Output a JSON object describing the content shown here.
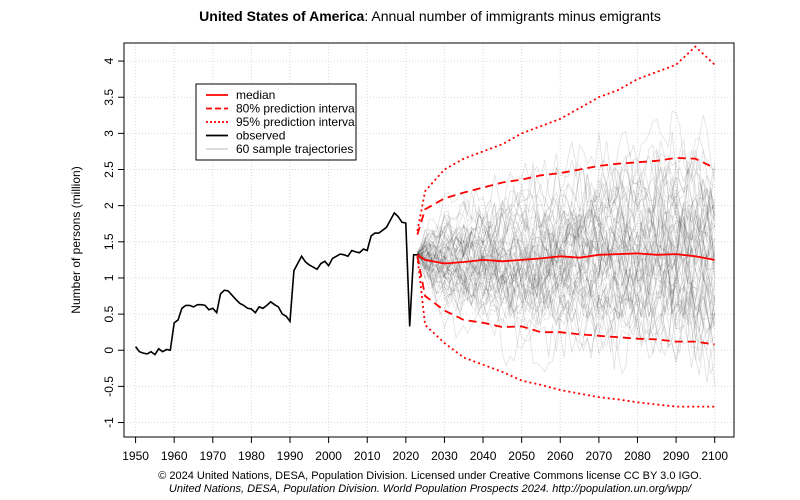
{
  "chart_data": {
    "type": "line",
    "title_bold": "United States of America",
    "title_rest": ": Annual number of immigrants minus emigrants",
    "ylabel": "Number of persons (million)",
    "xlim": [
      1947,
      2105
    ],
    "ylim": [
      -1.2,
      4.25
    ],
    "x_ticks": [
      1950,
      1960,
      1970,
      1980,
      1990,
      2000,
      2010,
      2020,
      2030,
      2040,
      2050,
      2060,
      2070,
      2080,
      2090,
      2100
    ],
    "y_ticks": [
      -1,
      -0.5,
      0,
      0.5,
      1,
      1.5,
      2,
      2.5,
      3,
      3.5,
      4
    ],
    "grid": true,
    "legend_position": "top-left",
    "legend": [
      {
        "label": "median",
        "style": "solid",
        "color": "#ff0000"
      },
      {
        "label": "80% prediction interva",
        "style": "dashed",
        "color": "#ff0000"
      },
      {
        "label": "95% prediction interva",
        "style": "dotted",
        "color": "#ff0000"
      },
      {
        "label": "observed",
        "style": "solid",
        "color": "#000000"
      },
      {
        "label": "60 sample trajectories",
        "style": "solid",
        "color": "#bbbbbb"
      }
    ],
    "observed": {
      "x": [
        1950,
        1951,
        1952,
        1953,
        1954,
        1955,
        1956,
        1957,
        1958,
        1959,
        1960,
        1961,
        1962,
        1963,
        1964,
        1965,
        1966,
        1967,
        1968,
        1969,
        1970,
        1971,
        1972,
        1973,
        1974,
        1975,
        1976,
        1977,
        1978,
        1979,
        1980,
        1981,
        1982,
        1983,
        1984,
        1985,
        1986,
        1987,
        1988,
        1989,
        1990,
        1991,
        1992,
        1993,
        1994,
        1995,
        1996,
        1997,
        1998,
        1999,
        2000,
        2001,
        2002,
        2003,
        2004,
        2005,
        2006,
        2007,
        2008,
        2009,
        2010,
        2011,
        2012,
        2013,
        2014,
        2015,
        2016,
        2017,
        2018,
        2019,
        2020,
        2021,
        2022,
        2023
      ],
      "y": [
        0.05,
        -0.02,
        -0.04,
        -0.05,
        -0.02,
        -0.06,
        0.02,
        -0.02,
        0.01,
        0.0,
        0.38,
        0.42,
        0.58,
        0.62,
        0.62,
        0.6,
        0.63,
        0.63,
        0.62,
        0.56,
        0.58,
        0.52,
        0.78,
        0.83,
        0.82,
        0.76,
        0.7,
        0.65,
        0.62,
        0.58,
        0.57,
        0.52,
        0.6,
        0.58,
        0.62,
        0.67,
        0.63,
        0.6,
        0.5,
        0.47,
        0.4,
        1.1,
        1.2,
        1.3,
        1.22,
        1.18,
        1.15,
        1.12,
        1.2,
        1.23,
        1.17,
        1.27,
        1.3,
        1.33,
        1.32,
        1.3,
        1.38,
        1.36,
        1.35,
        1.4,
        1.38,
        1.58,
        1.62,
        1.62,
        1.66,
        1.7,
        1.8,
        1.9,
        1.85,
        1.77,
        1.76,
        0.33,
        1.32,
        1.32
      ]
    },
    "projection_x": [
      2023,
      2025,
      2030,
      2035,
      2040,
      2045,
      2050,
      2055,
      2060,
      2065,
      2070,
      2075,
      2080,
      2085,
      2090,
      2095,
      2100
    ],
    "median": [
      1.32,
      1.25,
      1.2,
      1.22,
      1.25,
      1.23,
      1.25,
      1.27,
      1.3,
      1.28,
      1.32,
      1.33,
      1.34,
      1.32,
      1.33,
      1.3,
      1.25
    ],
    "pi80_upper": [
      1.6,
      1.95,
      2.1,
      2.18,
      2.25,
      2.32,
      2.36,
      2.42,
      2.45,
      2.5,
      2.55,
      2.58,
      2.6,
      2.62,
      2.66,
      2.65,
      2.52
    ],
    "pi80_lower": [
      1.3,
      0.75,
      0.55,
      0.42,
      0.38,
      0.32,
      0.33,
      0.25,
      0.25,
      0.22,
      0.2,
      0.18,
      0.16,
      0.15,
      0.12,
      0.12,
      0.08
    ],
    "pi95_upper": [
      1.65,
      2.2,
      2.5,
      2.65,
      2.75,
      2.85,
      3.0,
      3.1,
      3.2,
      3.35,
      3.5,
      3.6,
      3.75,
      3.85,
      3.95,
      4.2,
      3.95
    ],
    "pi95_lower": [
      1.3,
      0.35,
      0.1,
      -0.1,
      -0.2,
      -0.3,
      -0.42,
      -0.48,
      -0.55,
      -0.6,
      -0.65,
      -0.68,
      -0.72,
      -0.75,
      -0.78,
      -0.78,
      -0.78
    ],
    "sample_trajectories_count": 60
  },
  "credits": {
    "line1": "© 2024 United Nations, DESA, Population Division. Licensed under Creative Commons license CC BY 3.0 IGO.",
    "line2": "United Nations, DESA, Population Division. World Population Prospects 2024. http://population.un.org/wpp/"
  }
}
